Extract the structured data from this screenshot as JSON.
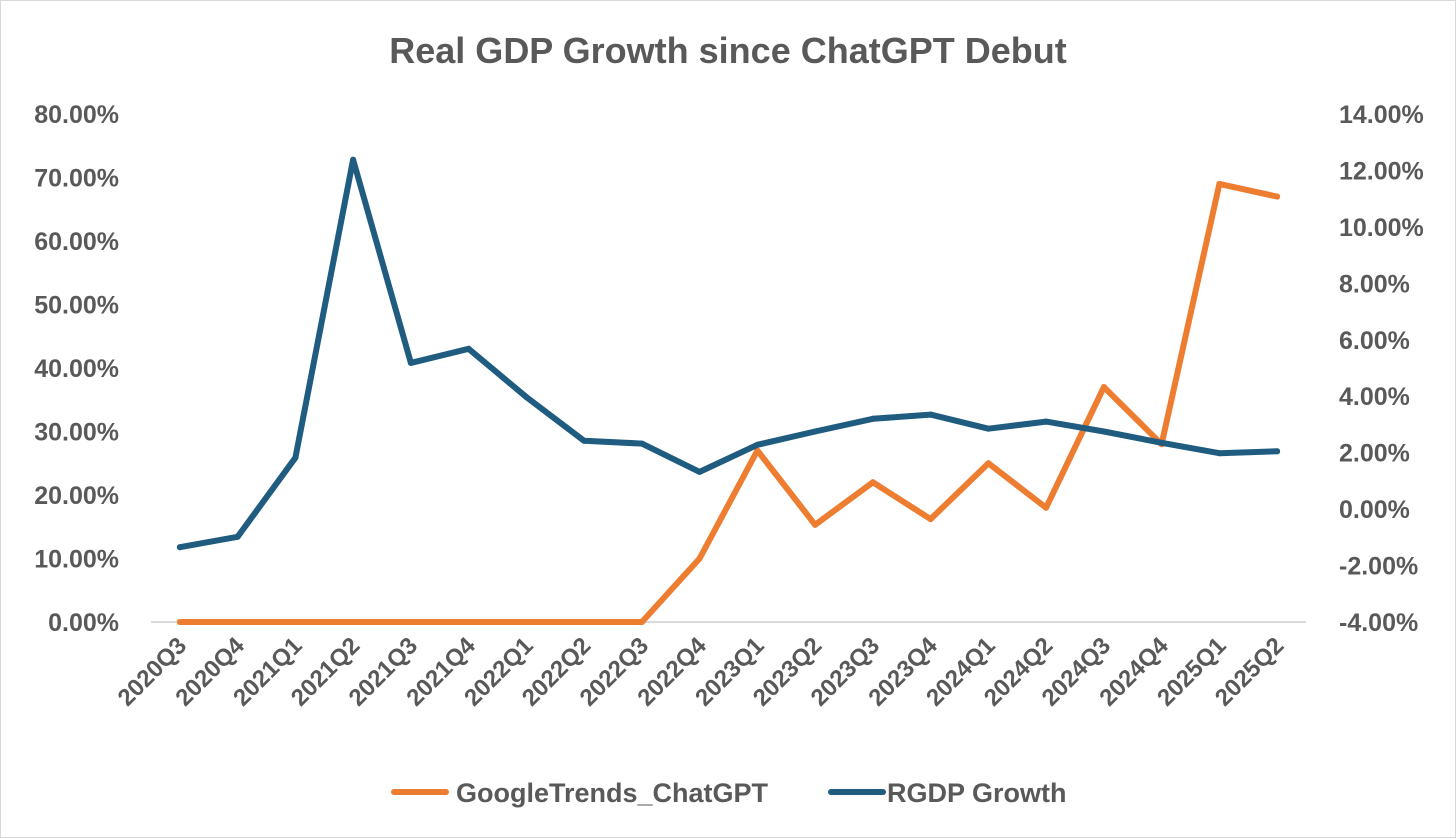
{
  "chart_data": {
    "type": "line",
    "title": "Real GDP Growth since ChatGPT Debut",
    "categories": [
      "2020Q3",
      "2020Q4",
      "2021Q1",
      "2021Q2",
      "2021Q3",
      "2021Q4",
      "2022Q1",
      "2022Q2",
      "2022Q3",
      "2022Q4",
      "2023Q1",
      "2023Q2",
      "2023Q3",
      "2023Q4",
      "2024Q1",
      "2024Q2",
      "2024Q3",
      "2024Q4",
      "2025Q1",
      "2025Q2"
    ],
    "y_left": {
      "min": 0,
      "max": 0.8,
      "step": 0.1,
      "ticks": [
        "0.00%",
        "10.00%",
        "20.00%",
        "30.00%",
        "40.00%",
        "50.00%",
        "60.00%",
        "70.00%",
        "80.00%"
      ]
    },
    "y_right": {
      "min": -0.04,
      "max": 0.14,
      "step": 0.02,
      "ticks": [
        "-4.00%",
        "-2.00%",
        "0.00%",
        "2.00%",
        "4.00%",
        "6.00%",
        "8.00%",
        "10.00%",
        "12.00%",
        "14.00%"
      ]
    },
    "grid": false,
    "legend_position": "bottom",
    "series": [
      {
        "name": "GoogleTrends_ChatGPT",
        "axis": "left",
        "color": "#ED7D31",
        "values": [
          0,
          0,
          0,
          0,
          0,
          0,
          0,
          0,
          0,
          0.1,
          0.27,
          0.153,
          0.22,
          0.162,
          0.25,
          0.18,
          0.37,
          0.28,
          0.69,
          0.67
        ]
      },
      {
        "name": "RGDP Growth",
        "axis": "right",
        "color": "#1F5C80",
        "values": [
          -0.0135,
          -0.0098,
          0.0182,
          0.1238,
          0.0518,
          0.0568,
          0.0397,
          0.0242,
          0.0232,
          0.0132,
          0.0228,
          0.0275,
          0.032,
          0.0335,
          0.0285,
          0.031,
          0.0275,
          0.0235,
          0.0198,
          0.0205
        ]
      }
    ]
  }
}
